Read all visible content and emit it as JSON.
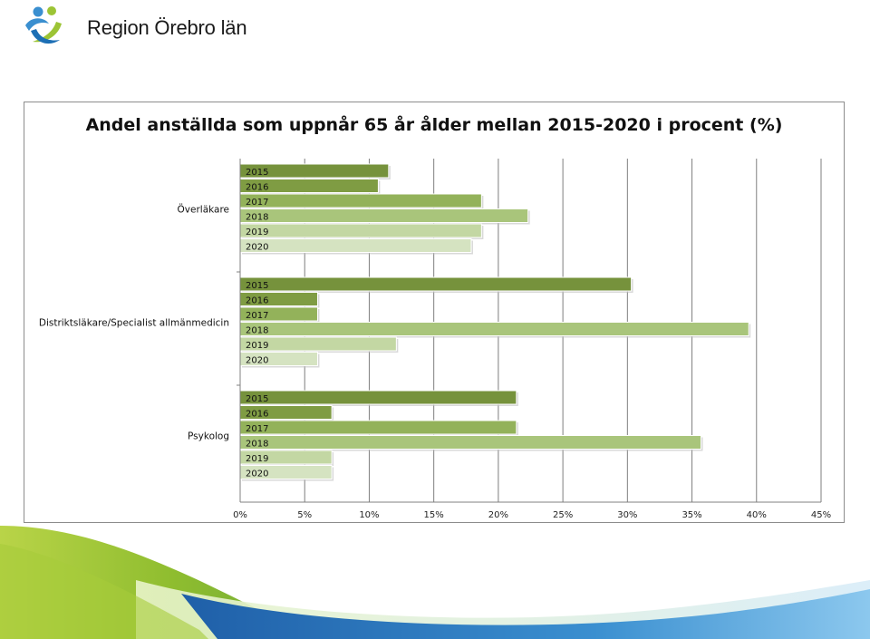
{
  "logo": {
    "text": "Region Örebro län",
    "icon": "region-orebro-logo-icon"
  },
  "colors": {
    "year_2015": "#76923c",
    "year_2016": "#7f9c43",
    "year_2017": "#93b25a",
    "year_2018": "#a9c57b",
    "year_2019": "#c3d7a3",
    "year_2020": "#d5e3c1",
    "wave_green": "#9cc435",
    "wave_blue": "#3a8fd0"
  },
  "chart_data": {
    "type": "bar",
    "orientation": "horizontal",
    "title": "Andel anställda som uppnår 65 år ålder mellan 2015-2020 i procent (%)",
    "categories": [
      "Överläkare",
      "Distriktsläkare/Specialist allmänmedicin",
      "Psykolog"
    ],
    "series": [
      {
        "name": "2015",
        "values": [
          11.5,
          30.3,
          21.4
        ]
      },
      {
        "name": "2016",
        "values": [
          10.7,
          6.0,
          7.1
        ]
      },
      {
        "name": "2017",
        "values": [
          18.7,
          6.0,
          21.4
        ]
      },
      {
        "name": "2018",
        "values": [
          22.3,
          39.4,
          35.7
        ]
      },
      {
        "name": "2019",
        "values": [
          18.7,
          12.1,
          7.1
        ]
      },
      {
        "name": "2020",
        "values": [
          17.9,
          6.0,
          7.1
        ]
      }
    ],
    "xlim": [
      0,
      45
    ],
    "xticks": [
      "0%",
      "5%",
      "10%",
      "15%",
      "20%",
      "25%",
      "30%",
      "35%",
      "40%",
      "45%"
    ],
    "grid": true,
    "legend": "none"
  }
}
